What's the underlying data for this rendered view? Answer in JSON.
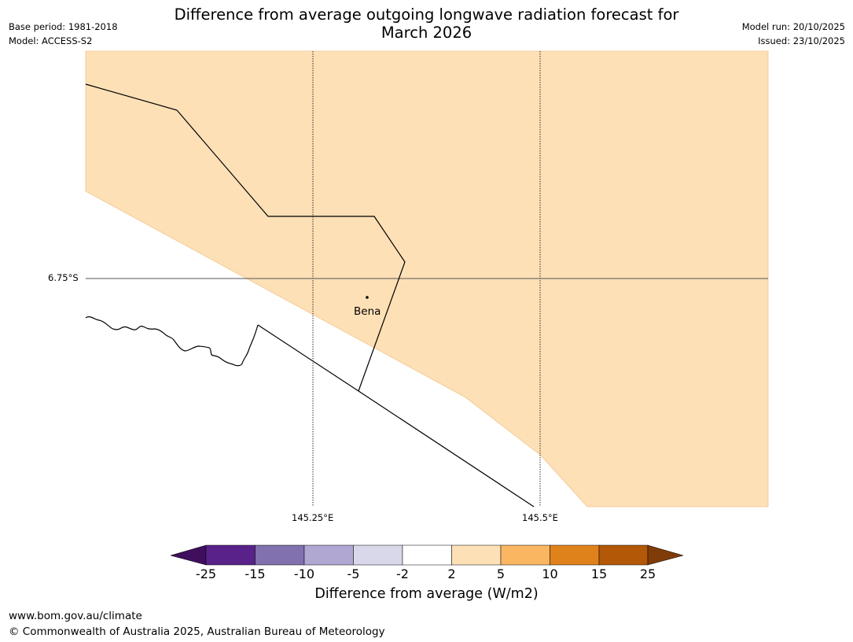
{
  "title": {
    "line1": "Difference from average outgoing longwave radiation forecast for",
    "line2": "March 2026"
  },
  "meta_left": {
    "base_period": "Base period: 1981-2018",
    "model": "Model: ACCESS-S2"
  },
  "meta_right": {
    "model_run": "Model run: 20/10/2025",
    "issued": "Issued: 23/10/2025"
  },
  "map": {
    "latitude_label": "6.75°S",
    "longitude_labels": [
      "145.25°E",
      "145.5°E"
    ],
    "place": "Bena",
    "fill_color": "#fde0b6",
    "boundary_color": "#000000"
  },
  "colorbar": {
    "ticks": [
      "-25",
      "-15",
      "-10",
      "-5",
      "-2",
      "2",
      "5",
      "10",
      "15",
      "25"
    ],
    "colors": [
      "#3f0f5e",
      "#58228a",
      "#8171ae",
      "#b0a7d2",
      "#d9d8ea",
      "#ffffff",
      "#fde0b6",
      "#fbb662",
      "#e0821c",
      "#b25807",
      "#7f3b08"
    ],
    "label": "Difference from average (W/m2)"
  },
  "footer": {
    "url": "www.bom.gov.au/climate",
    "copyright": "© Commonwealth of Australia 2025, Australian Bureau of Meteorology"
  }
}
